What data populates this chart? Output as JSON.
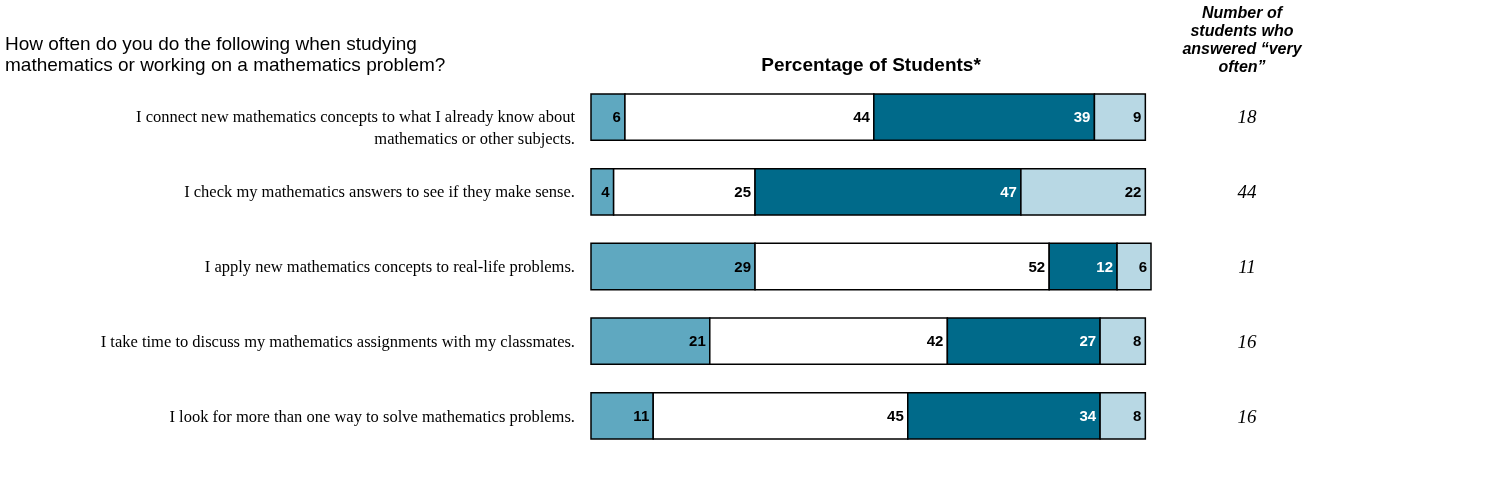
{
  "chart_data": {
    "type": "bar",
    "orientation": "horizontal",
    "stacked": true,
    "data_labels": true,
    "title": "Percentage of Students*",
    "ylabel": "How often do you do the following when studying mathematics or working on a mathematics problem?",
    "y2label": "Number of students who answered “very often”",
    "categories": [
      "I connect new mathematics concepts to what I already know about mathematics or other subjects.",
      "I check my mathematics answers to see if they make sense.",
      "I apply new mathematics concepts to real-life problems.",
      "I take time to discuss my mathematics assignments with my classmates.",
      "I look for more than one way to solve mathematics problems."
    ],
    "series": [
      {
        "color": "#5fa8c0",
        "values": [
          6,
          4,
          29,
          21,
          11
        ]
      },
      {
        "color": "#ffffff",
        "values": [
          44,
          25,
          52,
          42,
          45
        ]
      },
      {
        "color": "#006a8a",
        "values": [
          39,
          47,
          12,
          27,
          34
        ]
      },
      {
        "color": "#b8d8e4",
        "values": [
          9,
          22,
          6,
          8,
          8
        ]
      }
    ],
    "annotations": [
      "18",
      "44",
      "11",
      "16",
      "16"
    ]
  }
}
